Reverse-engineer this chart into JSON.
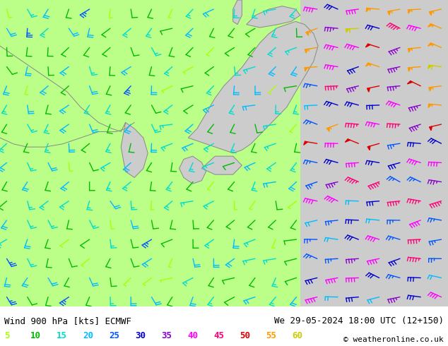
{
  "title_left": "Wind 900 hPa [kts] ECMWF",
  "title_right": "We 29-05-2024 18:00 UTC (12+150)",
  "copyright": "© weatheronline.co.uk",
  "legend_values": [
    5,
    10,
    15,
    20,
    25,
    30,
    35,
    40,
    45,
    50,
    55,
    60
  ],
  "legend_colors": [
    "#aaff00",
    "#00bb00",
    "#00ddcc",
    "#00bbff",
    "#0055ff",
    "#0000cc",
    "#8800cc",
    "#ff00ff",
    "#ff0077",
    "#dd0000",
    "#ff9900",
    "#cccc00"
  ],
  "figsize": [
    6.34,
    4.9
  ],
  "dpi": 100,
  "bottom_bar_color": "#d8d8d8",
  "sea_color": "#ffffff",
  "land_green_color": "#bbff88",
  "land_gray_color": "#cccccc",
  "coast_color": "#888888",
  "barb_linewidth": 1.0,
  "grid_nx": 22,
  "grid_ny": 16
}
